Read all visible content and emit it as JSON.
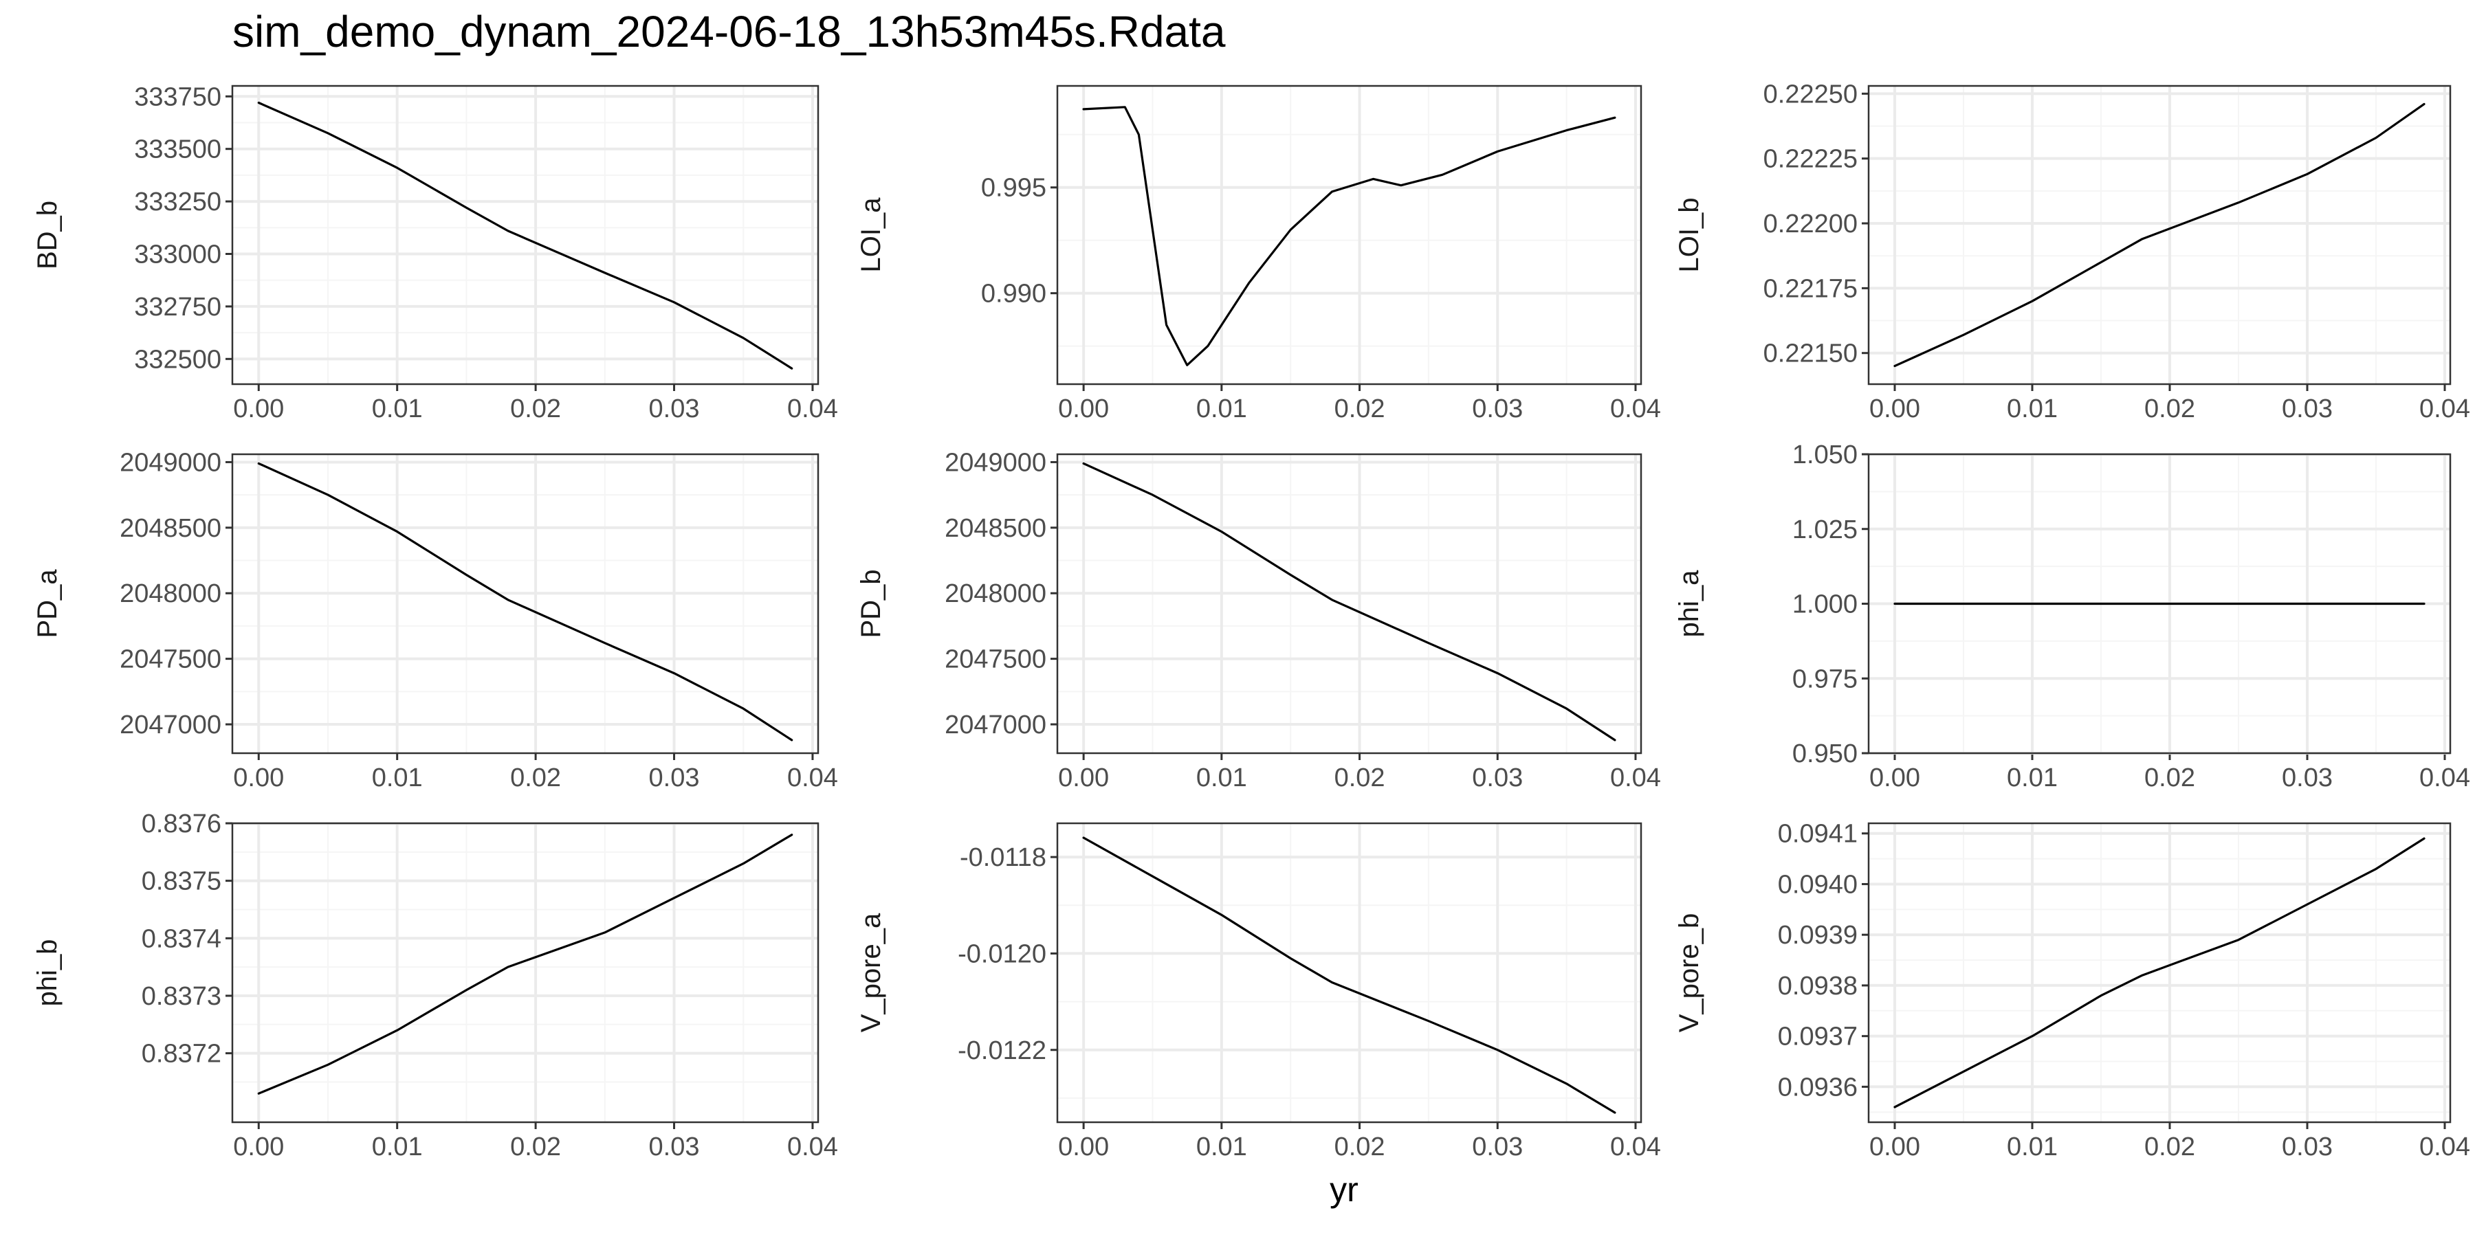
{
  "title": "sim_demo_dynam_2024-06-18_13h53m45s.Rdata",
  "xlabel": "yr",
  "colors": {
    "line": "#000000",
    "panel_border": "#333333",
    "grid_major": "#ebebeb",
    "grid_minor": "#f5f5f5",
    "tick_text": "#4d4d4d"
  },
  "chart_data": [
    {
      "type": "line",
      "ylabel": "BD_b",
      "xlim": [
        -0.0019,
        0.0404
      ],
      "ylim": [
        332380,
        333800
      ],
      "xticks": [
        0,
        0.01,
        0.02,
        0.03,
        0.04
      ],
      "xtick_labels": [
        "0.00",
        "0.01",
        "0.02",
        "0.03",
        "0.04"
      ],
      "yticks": [
        332500,
        332750,
        333000,
        333250,
        333500,
        333750
      ],
      "ytick_labels": [
        "332500",
        "332750",
        "333000",
        "333250",
        "333500",
        "333750"
      ],
      "x": [
        0,
        0.005,
        0.01,
        0.015,
        0.018,
        0.025,
        0.03,
        0.035,
        0.0385
      ],
      "y": [
        333720,
        333575,
        333410,
        333220,
        333110,
        332910,
        332770,
        332600,
        332455
      ]
    },
    {
      "type": "line",
      "ylabel": "LOI_a",
      "xlim": [
        -0.0019,
        0.0404
      ],
      "ylim": [
        0.9857,
        0.9998
      ],
      "xticks": [
        0,
        0.01,
        0.02,
        0.03,
        0.04
      ],
      "xtick_labels": [
        "0.00",
        "0.01",
        "0.02",
        "0.03",
        "0.04"
      ],
      "yticks": [
        0.99,
        0.995
      ],
      "ytick_labels": [
        "0.990",
        "0.995"
      ],
      "x": [
        0,
        0.003,
        0.004,
        0.005,
        0.006,
        0.0075,
        0.009,
        0.012,
        0.015,
        0.018,
        0.021,
        0.023,
        0.026,
        0.03,
        0.035,
        0.0385
      ],
      "y": [
        0.9987,
        0.9988,
        0.9975,
        0.993,
        0.9885,
        0.9866,
        0.9875,
        0.9905,
        0.993,
        0.9948,
        0.9954,
        0.9951,
        0.9956,
        0.9967,
        0.9977,
        0.9983
      ]
    },
    {
      "type": "line",
      "ylabel": "LOI_b",
      "xlim": [
        -0.0019,
        0.0404
      ],
      "ylim": [
        0.22138,
        0.22253
      ],
      "xticks": [
        0,
        0.01,
        0.02,
        0.03,
        0.04
      ],
      "xtick_labels": [
        "0.00",
        "0.01",
        "0.02",
        "0.03",
        "0.04"
      ],
      "yticks": [
        0.2215,
        0.22175,
        0.222,
        0.22225,
        0.2225
      ],
      "ytick_labels": [
        "0.22150",
        "0.22175",
        "0.22200",
        "0.22225",
        "0.22250"
      ],
      "x": [
        0,
        0.005,
        0.01,
        0.015,
        0.018,
        0.025,
        0.03,
        0.035,
        0.0385
      ],
      "y": [
        0.22145,
        0.22157,
        0.2217,
        0.22185,
        0.22194,
        0.22208,
        0.22219,
        0.22233,
        0.22246
      ]
    },
    {
      "type": "line",
      "ylabel": "PD_a",
      "xlim": [
        -0.0019,
        0.0404
      ],
      "ylim": [
        2046780,
        2049060
      ],
      "xticks": [
        0,
        0.01,
        0.02,
        0.03,
        0.04
      ],
      "xtick_labels": [
        "0.00",
        "0.01",
        "0.02",
        "0.03",
        "0.04"
      ],
      "yticks": [
        2047000,
        2047500,
        2048000,
        2048500,
        2049000
      ],
      "ytick_labels": [
        "2047000",
        "2047500",
        "2048000",
        "2048500",
        "2049000"
      ],
      "x": [
        0,
        0.005,
        0.01,
        0.015,
        0.018,
        0.025,
        0.03,
        0.035,
        0.0385
      ],
      "y": [
        2048990,
        2048750,
        2048470,
        2048140,
        2047950,
        2047620,
        2047390,
        2047120,
        2046880
      ]
    },
    {
      "type": "line",
      "ylabel": "PD_b",
      "xlim": [
        -0.0019,
        0.0404
      ],
      "ylim": [
        2046780,
        2049060
      ],
      "xticks": [
        0,
        0.01,
        0.02,
        0.03,
        0.04
      ],
      "xtick_labels": [
        "0.00",
        "0.01",
        "0.02",
        "0.03",
        "0.04"
      ],
      "yticks": [
        2047000,
        2047500,
        2048000,
        2048500,
        2049000
      ],
      "ytick_labels": [
        "2047000",
        "2047500",
        "2048000",
        "2048500",
        "2049000"
      ],
      "x": [
        0,
        0.005,
        0.01,
        0.015,
        0.018,
        0.025,
        0.03,
        0.035,
        0.0385
      ],
      "y": [
        2048990,
        2048750,
        2048470,
        2048140,
        2047950,
        2047620,
        2047390,
        2047120,
        2046880
      ]
    },
    {
      "type": "line",
      "ylabel": "phi_a",
      "xlim": [
        -0.0019,
        0.0404
      ],
      "ylim": [
        0.95,
        1.05
      ],
      "xticks": [
        0,
        0.01,
        0.02,
        0.03,
        0.04
      ],
      "xtick_labels": [
        "0.00",
        "0.01",
        "0.02",
        "0.03",
        "0.04"
      ],
      "yticks": [
        0.95,
        0.975,
        1.0,
        1.025,
        1.05
      ],
      "ytick_labels": [
        "0.950",
        "0.975",
        "1.000",
        "1.025",
        "1.050"
      ],
      "x": [
        0,
        0.0385
      ],
      "y": [
        1.0,
        1.0
      ]
    },
    {
      "type": "line",
      "ylabel": "phi_b",
      "xlim": [
        -0.0019,
        0.0404
      ],
      "ylim": [
        0.83708,
        0.8376
      ],
      "xticks": [
        0,
        0.01,
        0.02,
        0.03,
        0.04
      ],
      "xtick_labels": [
        "0.00",
        "0.01",
        "0.02",
        "0.03",
        "0.04"
      ],
      "yticks": [
        0.8372,
        0.8373,
        0.8374,
        0.8375,
        0.8376
      ],
      "ytick_labels": [
        "0.8372",
        "0.8373",
        "0.8374",
        "0.8375",
        "0.8376"
      ],
      "x": [
        0,
        0.005,
        0.01,
        0.015,
        0.018,
        0.025,
        0.03,
        0.035,
        0.0385
      ],
      "y": [
        0.83713,
        0.83718,
        0.83724,
        0.83731,
        0.83735,
        0.83741,
        0.83747,
        0.83753,
        0.83758
      ]
    },
    {
      "type": "line",
      "ylabel": "V_pore_a",
      "xlim": [
        -0.0019,
        0.0404
      ],
      "ylim": [
        -0.01235,
        -0.01173
      ],
      "xticks": [
        0,
        0.01,
        0.02,
        0.03,
        0.04
      ],
      "xtick_labels": [
        "0.00",
        "0.01",
        "0.02",
        "0.03",
        "0.04"
      ],
      "yticks": [
        -0.0122,
        -0.012,
        -0.0118
      ],
      "ytick_labels": [
        "-0.0122",
        "-0.0120",
        "-0.0118"
      ],
      "x": [
        0,
        0.005,
        0.01,
        0.015,
        0.018,
        0.025,
        0.03,
        0.035,
        0.0385
      ],
      "y": [
        -0.01176,
        -0.01184,
        -0.01192,
        -0.01201,
        -0.01206,
        -0.01214,
        -0.0122,
        -0.01227,
        -0.01233
      ]
    },
    {
      "type": "line",
      "ylabel": "V_pore_b",
      "xlim": [
        -0.0019,
        0.0404
      ],
      "ylim": [
        0.09353,
        0.09412
      ],
      "xticks": [
        0,
        0.01,
        0.02,
        0.03,
        0.04
      ],
      "xtick_labels": [
        "0.00",
        "0.01",
        "0.02",
        "0.03",
        "0.04"
      ],
      "yticks": [
        0.0936,
        0.0937,
        0.0938,
        0.0939,
        0.094,
        0.0941
      ],
      "ytick_labels": [
        "0.0936",
        "0.0937",
        "0.0938",
        "0.0939",
        "0.0940",
        "0.0941"
      ],
      "x": [
        0,
        0.005,
        0.01,
        0.015,
        0.018,
        0.025,
        0.03,
        0.035,
        0.0385
      ],
      "y": [
        0.09356,
        0.09363,
        0.0937,
        0.09378,
        0.09382,
        0.09389,
        0.09396,
        0.09403,
        0.09409
      ]
    }
  ]
}
